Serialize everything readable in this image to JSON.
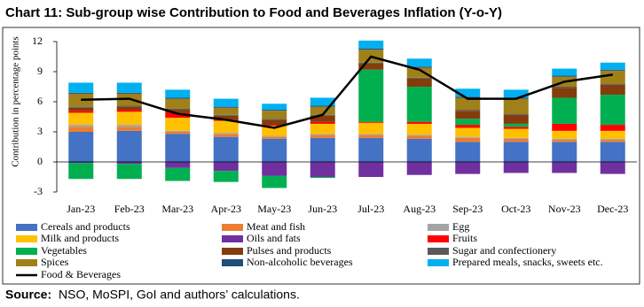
{
  "chart_data": {
    "type": "stacked_bar_line",
    "title": "Chart 11: Sub-group wise Contribution to Food and Beverages Inflation (Y-o-Y)",
    "y_label": "Contribution in percentage points",
    "categories": [
      "Jan-23",
      "Feb-23",
      "Mar-23",
      "Apr-23",
      "May-23",
      "Jun-23",
      "Jul-23",
      "Aug-23",
      "Sep-23",
      "Oct-23",
      "Nov-23",
      "Dec-23"
    ],
    "ylim": [
      -3,
      12
    ],
    "yticks": [
      -3,
      0,
      3,
      6,
      9,
      12
    ],
    "series": [
      {
        "name": "Cereals and products",
        "color": "#4472c4",
        "values": [
          3.0,
          3.1,
          2.8,
          2.5,
          2.3,
          2.4,
          2.4,
          2.3,
          2.0,
          2.0,
          2.0,
          2.0
        ]
      },
      {
        "name": "Meat and fish",
        "color": "#ed7d31",
        "values": [
          0.5,
          0.4,
          0.2,
          0.3,
          0.2,
          0.3,
          0.3,
          0.3,
          0.4,
          0.3,
          0.2,
          0.2
        ]
      },
      {
        "name": "Egg",
        "color": "#a5a5a5",
        "values": [
          0.2,
          0.2,
          0.1,
          0.1,
          0.1,
          0.1,
          0.1,
          0.1,
          0.1,
          0.1,
          0.1,
          0.1
        ]
      },
      {
        "name": "Milk and products",
        "color": "#ffc000",
        "values": [
          1.2,
          1.3,
          1.3,
          1.2,
          1.0,
          1.0,
          1.1,
          1.1,
          0.9,
          0.9,
          0.8,
          0.8
        ]
      },
      {
        "name": "Oils and fats",
        "color": "#7030a0",
        "values": [
          -0.1,
          -0.2,
          -0.6,
          -0.9,
          -1.4,
          -1.5,
          -1.5,
          -1.3,
          -1.2,
          -1.1,
          -1.1,
          -1.2
        ]
      },
      {
        "name": "Fruits",
        "color": "#ff0000",
        "values": [
          0.2,
          0.2,
          0.5,
          0.1,
          0.1,
          0.2,
          0.1,
          0.2,
          0.3,
          0.2,
          0.7,
          0.6
        ]
      },
      {
        "name": "Vegetables",
        "color": "#00b050",
        "values": [
          -1.6,
          -1.5,
          -1.3,
          -1.1,
          -1.2,
          -0.1,
          5.2,
          3.5,
          0.6,
          0.3,
          2.6,
          3.0
        ]
      },
      {
        "name": "Pulses and products",
        "color": "#843c0c",
        "values": [
          0.3,
          0.3,
          0.3,
          0.4,
          0.5,
          0.6,
          0.6,
          0.8,
          0.8,
          0.9,
          1.0,
          1.0
        ]
      },
      {
        "name": "Sugar and confectionery",
        "color": "#595959",
        "values": [
          0.1,
          0.1,
          0.1,
          0.1,
          0.1,
          0.1,
          0.1,
          0.1,
          0.1,
          0.1,
          0.1,
          0.1
        ]
      },
      {
        "name": "Spices",
        "color": "#a08019",
        "values": [
          1.3,
          1.2,
          1.0,
          0.7,
          0.8,
          0.8,
          1.3,
          1.0,
          1.2,
          1.5,
          1.0,
          1.3
        ]
      },
      {
        "name": "Non-alcoholic beverages",
        "color": "#1f4e79",
        "values": [
          0.1,
          0.1,
          0.1,
          0.1,
          0.1,
          0.1,
          0.1,
          0.1,
          0.1,
          0.1,
          0.1,
          0.1
        ]
      },
      {
        "name": "Prepared meals, snacks, sweets etc.",
        "color": "#00b0f0",
        "values": [
          1.0,
          1.0,
          0.8,
          0.8,
          0.6,
          0.8,
          0.8,
          0.8,
          0.8,
          0.8,
          0.7,
          0.7
        ]
      }
    ],
    "line": {
      "name": "Food & Beverages",
      "color": "#000000",
      "values": [
        6.2,
        6.3,
        4.8,
        4.2,
        3.4,
        4.7,
        10.5,
        9.2,
        6.3,
        6.3,
        8.0,
        8.7
      ]
    },
    "source_label": "Source:",
    "source_text": "NSO, MoSPI, GoI and authors’ calculations."
  }
}
